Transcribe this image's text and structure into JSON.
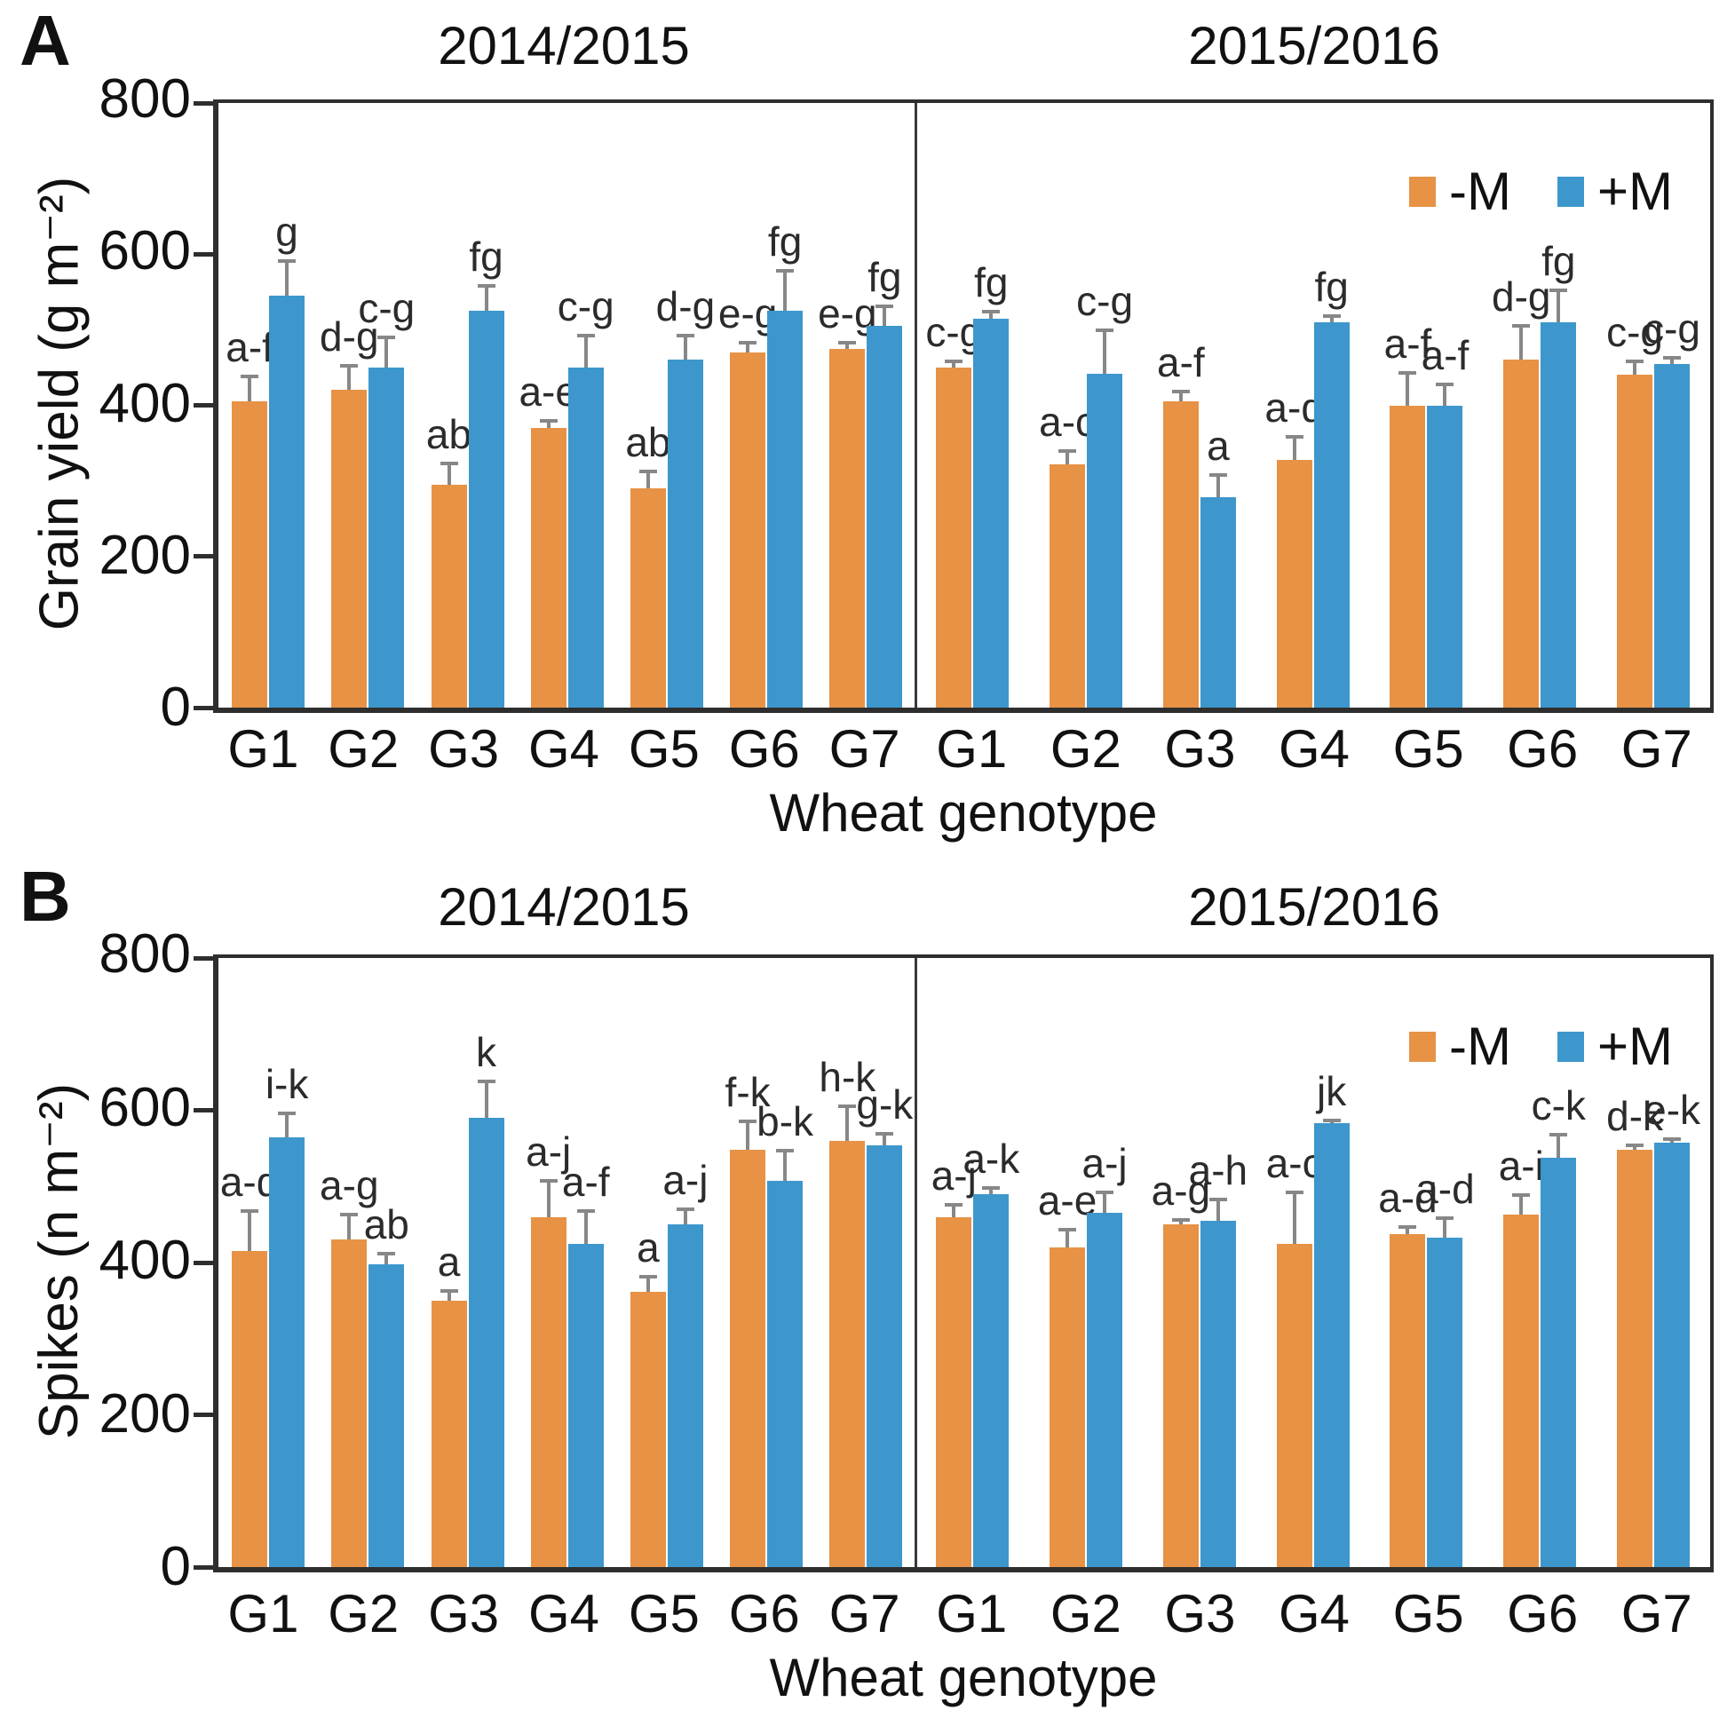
{
  "figure": {
    "background": "#ffffff",
    "colors": {
      "minus_m": "#E79245",
      "plus_m": "#3D97CC",
      "error_bar": "#878787",
      "axis": "#2e2e2e",
      "text": "#111111"
    }
  },
  "chart_data": [
    {
      "type": "bar",
      "panel": "A",
      "ylabel": "Grain yield (g m⁻²)",
      "xlabel": "Wheat genotype",
      "categories": [
        "G1",
        "G2",
        "G3",
        "G4",
        "G5",
        "G6",
        "G7"
      ],
      "ylim": [
        0,
        800
      ],
      "yticks": [
        0,
        200,
        400,
        600,
        800
      ],
      "grid": false,
      "error_bars": true,
      "legend": [
        "-M",
        "+M"
      ],
      "legend_position": "top-right",
      "groups": [
        {
          "season": "2014/2015",
          "series": [
            {
              "name": "-M",
              "values": [
                405,
                420,
                295,
                370,
                290,
                470,
                475
              ],
              "errors": [
                35,
                35,
                30,
                12,
                25,
                15,
                10
              ],
              "letters": [
                "a-f",
                "d-g",
                "ab",
                "a-e",
                "ab",
                "e-g",
                "e-g"
              ]
            },
            {
              "name": "+M",
              "values": [
                545,
                450,
                525,
                450,
                460,
                525,
                505
              ],
              "errors": [
                48,
                42,
                35,
                45,
                35,
                55,
                28
              ],
              "letters": [
                "g",
                "c-g",
                "fg",
                "c-g",
                "d-g",
                "fg",
                "fg"
              ]
            }
          ]
        },
        {
          "season": "2015/2016",
          "series": [
            {
              "name": "-M",
              "values": [
                450,
                322,
                405,
                328,
                400,
                460,
                440
              ],
              "errors": [
                10,
                20,
                16,
                33,
                45,
                48,
                20
              ],
              "letters": [
                "c-g",
                "a-c",
                "a-f",
                "a-d",
                "a-f",
                "d-g",
                "c-g"
              ]
            },
            {
              "name": "+M",
              "values": [
                514,
                442,
                278,
                510,
                400,
                510,
                455
              ],
              "errors": [
                12,
                60,
                32,
                10,
                30,
                45,
                10
              ],
              "letters": [
                "fg",
                "c-g",
                "a",
                "fg",
                "a-f",
                "fg",
                "c-g"
              ]
            }
          ]
        }
      ]
    },
    {
      "type": "bar",
      "panel": "B",
      "ylabel": "Spikes (n m⁻²)",
      "xlabel": "Wheat genotype",
      "categories": [
        "G1",
        "G2",
        "G3",
        "G4",
        "G5",
        "G6",
        "G7"
      ],
      "ylim": [
        0,
        800
      ],
      "yticks": [
        0,
        200,
        400,
        600,
        800
      ],
      "grid": false,
      "error_bars": true,
      "legend": [
        "-M",
        "+M"
      ],
      "legend_position": "top-right",
      "groups": [
        {
          "season": "2014/2015",
          "series": [
            {
              "name": "-M",
              "values": [
                415,
                430,
                350,
                460,
                362,
                548,
                560
              ],
              "errors": [
                55,
                35,
                15,
                50,
                22,
                40,
                48
              ],
              "letters": [
                "a-d",
                "a-g",
                "a",
                "a-j",
                "a",
                "f-k",
                "h-k"
              ]
            },
            {
              "name": "+M",
              "values": [
                565,
                398,
                590,
                425,
                450,
                507,
                554
              ],
              "errors": [
                33,
                16,
                50,
                45,
                22,
                42,
                17
              ],
              "letters": [
                "i-k",
                "ab",
                "k",
                "a-f",
                "a-j",
                "b-k",
                "g-k"
              ]
            }
          ]
        },
        {
          "season": "2015/2016",
          "series": [
            {
              "name": "-M",
              "values": [
                460,
                420,
                450,
                425,
                437,
                463,
                548
              ],
              "errors": [
                18,
                25,
                8,
                70,
                12,
                28,
                8
              ],
              "letters": [
                "a-j",
                "a-e",
                "a-g",
                "a-c",
                "a-d",
                "a-i",
                "d-k"
              ]
            },
            {
              "name": "+M",
              "values": [
                490,
                465,
                455,
                583,
                433,
                538,
                558
              ],
              "errors": [
                10,
                30,
                30,
                6,
                28,
                32,
                6
              ],
              "letters": [
                "a-k",
                "a-j",
                "a-h",
                "jk",
                "a-d",
                "c-k",
                "e-k"
              ]
            }
          ]
        }
      ]
    }
  ]
}
